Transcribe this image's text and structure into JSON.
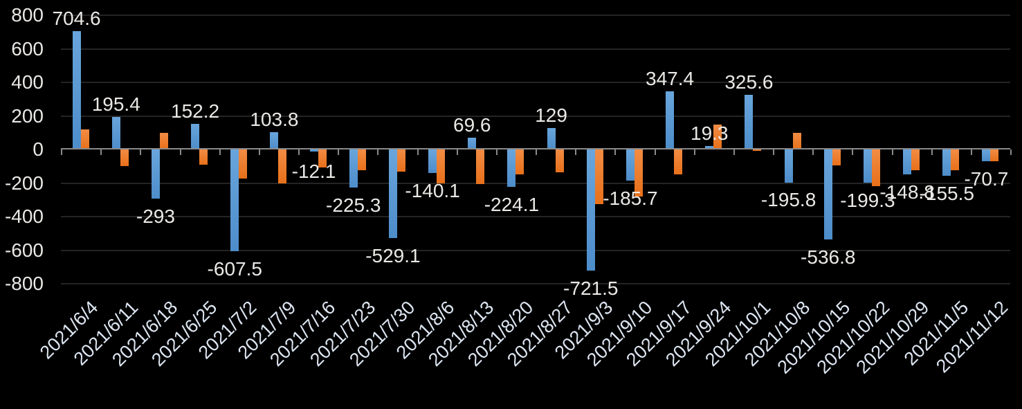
{
  "chart_data": {
    "type": "bar",
    "title": "",
    "legend": "none",
    "grid": true,
    "background": "#000000",
    "categories": [
      "2021/6/4",
      "2021/6/11",
      "2021/6/18",
      "2021/6/25",
      "2021/7/2",
      "2021/7/9",
      "2021/7/16",
      "2021/7/23",
      "2021/7/30",
      "2021/8/6",
      "2021/8/13",
      "2021/8/20",
      "2021/8/27",
      "2021/9/3",
      "2021/9/10",
      "2021/9/17",
      "2021/9/24",
      "2021/10/1",
      "2021/10/8",
      "2021/10/15",
      "2021/10/22",
      "2021/10/29",
      "2021/11/5",
      "2021/11/12"
    ],
    "series": [
      {
        "name": "blue-series",
        "color": "#5b9bd5",
        "values": [
          704.6,
          195.4,
          -293,
          152.2,
          -607.5,
          103.8,
          -12.1,
          -225.3,
          -529.1,
          -140.1,
          69.6,
          -224.1,
          129,
          -721.5,
          -185.7,
          347.4,
          19.3,
          325.6,
          -195.8,
          -536.8,
          -199.3,
          -148.8,
          -155.5,
          -70.7
        ],
        "data_labels": [
          "704.6",
          "195.4",
          "-293",
          "152.2",
          "-607.5",
          "103.8",
          "-12.1",
          "-225.3",
          "-529.1",
          "-140.1",
          "69.6",
          "-224.1",
          "129",
          "-721.5",
          "-185.7",
          "347.4",
          "19.3",
          "325.6",
          "-195.8",
          "-536.8",
          "-199.3",
          "-148.8",
          "-155.5",
          "-70.7"
        ]
      },
      {
        "name": "orange-series",
        "color": "#ed7d31",
        "values": [
          120,
          -100,
          100,
          -90,
          -175,
          -200,
          -105,
          -125,
          -130,
          -200,
          -205,
          -150,
          -135,
          -325,
          -280,
          -150,
          150,
          -6,
          100,
          -95,
          -220,
          -125,
          -125,
          -70
        ],
        "data_labels": []
      }
    ],
    "y_axis": {
      "min": -800,
      "max": 800,
      "step": 200,
      "tick_labels": [
        "800",
        "600",
        "400",
        "200",
        "0",
        "-200",
        "-400",
        "-600",
        "-800"
      ]
    },
    "x_axis": {
      "label_rotation_deg": -45
    },
    "colors": {
      "gridline": "#242424",
      "axis_line": "#8a8a8a",
      "y_axis_text": "#eae8e5",
      "x_axis_text": "#dde6f2",
      "data_label_text": "#ebe9e6",
      "bar_blue": "#5b9bd5",
      "bar_orange": "#ed7d31"
    }
  }
}
